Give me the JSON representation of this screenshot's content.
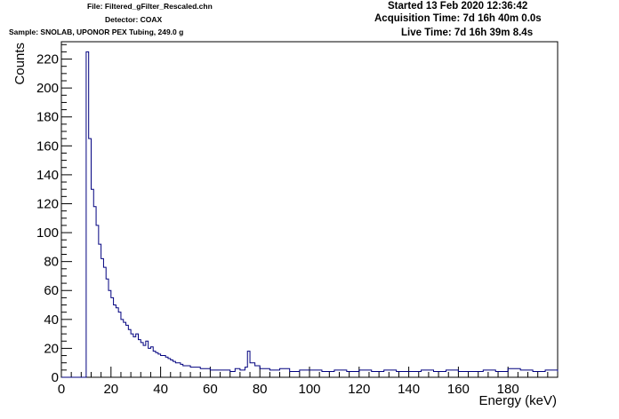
{
  "header": {
    "file": "File: Filtered_gFilter_Rescaled.chn",
    "detector": "Detector: COAX",
    "sample": "Sample: SNOLAB, UPONOR PEX Tubing, 249.0 g",
    "started": "Started 13 Feb 2020 12:36:42",
    "acquisition_time": "Acquisition Time: 7d 16h 40m 0.0s",
    "live_time": "Live Time: 7d 16h 39m 8.4s"
  },
  "colors": {
    "series": "#00007f",
    "axis": "#000000"
  },
  "chart_data": {
    "type": "line",
    "title": "",
    "xlabel": "Energy (keV)",
    "ylabel": "Counts",
    "xlim": [
      0,
      200
    ],
    "ylim": [
      0,
      232
    ],
    "x_ticks": [
      "0",
      "20",
      "40",
      "60",
      "80",
      "100",
      "120",
      "140",
      "160",
      "180"
    ],
    "y_ticks": [
      "0",
      "20",
      "40",
      "60",
      "80",
      "100",
      "120",
      "140",
      "160",
      "180",
      "200",
      "220"
    ],
    "grid": false,
    "legend": "none",
    "series": [
      {
        "step": "histogram",
        "x": [
          0,
          10,
          11,
          12,
          13,
          14,
          15,
          16,
          17,
          18,
          19,
          20,
          21,
          22,
          23,
          24,
          25,
          26,
          27,
          28,
          29,
          30,
          31,
          32,
          33,
          34,
          35,
          36,
          37,
          38,
          39,
          40,
          41,
          42,
          43,
          44,
          45,
          46,
          47,
          48,
          49,
          50,
          52,
          54,
          56,
          58,
          60,
          62,
          64,
          66,
          68,
          70,
          72,
          74,
          75,
          76,
          78,
          80,
          84,
          88,
          92,
          96,
          100,
          105,
          110,
          115,
          120,
          125,
          130,
          135,
          140,
          145,
          150,
          155,
          160,
          165,
          170,
          175,
          180,
          185,
          190,
          195,
          200
        ],
        "y": [
          0,
          225,
          165,
          130,
          118,
          105,
          92,
          82,
          76,
          68,
          60,
          55,
          50,
          48,
          45,
          40,
          38,
          36,
          33,
          30,
          28,
          30,
          26,
          24,
          22,
          25,
          20,
          21,
          18,
          17,
          16,
          15,
          15,
          14,
          13,
          12,
          11,
          10,
          10,
          9,
          8,
          8,
          7,
          7,
          6,
          6,
          5,
          5,
          5,
          5,
          4,
          6,
          5,
          7,
          18,
          10,
          8,
          6,
          5,
          6,
          4,
          5,
          5,
          4,
          5,
          4,
          5,
          4,
          5,
          4,
          4,
          5,
          4,
          5,
          4,
          4,
          5,
          4,
          6,
          5,
          4,
          5,
          4
        ]
      }
    ]
  }
}
